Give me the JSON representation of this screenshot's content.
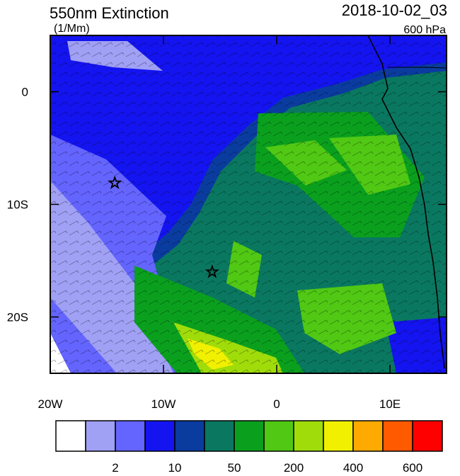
{
  "header": {
    "title": "550nm Extinction",
    "units": "(1/Mm)",
    "time": "2018-10-02_03",
    "level": "600 hPa"
  },
  "map": {
    "xlim": [
      -20,
      15
    ],
    "ylim": [
      -25,
      5
    ],
    "xticks": [
      {
        "value": -20,
        "label": "20W"
      },
      {
        "value": -10,
        "label": "10W"
      },
      0,
      {
        "value": 10,
        "label": "10E"
      }
    ],
    "yticks": [
      0,
      {
        "value": -10,
        "label": "10S"
      },
      {
        "value": -20,
        "label": "20S"
      }
    ],
    "markers": [
      {
        "lon": -14.3,
        "lat": -8.1
      },
      {
        "lon": -5.7,
        "lat": -16.0
      }
    ]
  },
  "colorbar": {
    "colors": [
      "#ffffff",
      "#a0a0f5",
      "#6464ff",
      "#1414f0",
      "#0a3ca0",
      "#0a7860",
      "#0aa01e",
      "#50c814",
      "#a0dc0a",
      "#f0f000",
      "#ffaa00",
      "#ff5a00",
      "#ff0000"
    ],
    "boundaries": [
      null,
      2,
      null,
      10,
      null,
      50,
      null,
      200,
      null,
      400,
      null,
      600
    ]
  }
}
